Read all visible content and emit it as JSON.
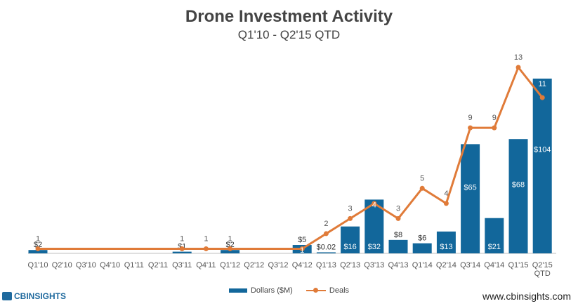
{
  "chart_data": {
    "type": "bar",
    "title": "Drone Investment Activity",
    "subtitle": "Q1'10 - Q2'15 QTD",
    "categories": [
      "Q1'10",
      "Q2'10",
      "Q3'10",
      "Q4'10",
      "Q1'11",
      "Q2'11",
      "Q3'11",
      "Q4'11",
      "Q1'12",
      "Q2'12",
      "Q3'12",
      "Q4'12",
      "Q1'13",
      "Q2'13",
      "Q3'13",
      "Q4'13",
      "Q1'14",
      "Q2'14",
      "Q3'14",
      "Q4'14",
      "Q1'15",
      "Q2'15 QTD"
    ],
    "series": [
      {
        "name": "Dollars ($M)",
        "type": "bar",
        "color": "#12679b",
        "values": [
          2,
          null,
          null,
          null,
          null,
          null,
          1,
          null,
          2,
          null,
          null,
          5,
          0.02,
          16,
          32,
          8,
          6,
          13,
          65,
          21,
          68,
          104
        ],
        "labels": [
          "$2",
          "",
          "",
          "",
          "",
          "",
          "$1",
          "",
          "$2",
          "",
          "",
          "$5",
          "$0.02",
          "$16",
          "$32",
          "$8",
          "$6",
          "$13",
          "$65",
          "$21",
          "$68",
          "$104"
        ]
      },
      {
        "name": "Deals",
        "type": "line",
        "color": "#e07b39",
        "values": [
          1,
          null,
          null,
          null,
          null,
          null,
          1,
          1,
          1,
          null,
          null,
          1,
          2,
          3,
          4,
          3,
          5,
          4,
          9,
          9,
          13,
          11
        ]
      }
    ],
    "xlabel": "",
    "ylabel": "",
    "y_dollars_range": [
      0,
      112
    ],
    "y_deals_range": [
      0,
      14
    ],
    "grid": false,
    "legend_position": "bottom"
  },
  "footer": {
    "logo_text": "CBINSIGHTS",
    "website": "www.cbinsights.com"
  }
}
